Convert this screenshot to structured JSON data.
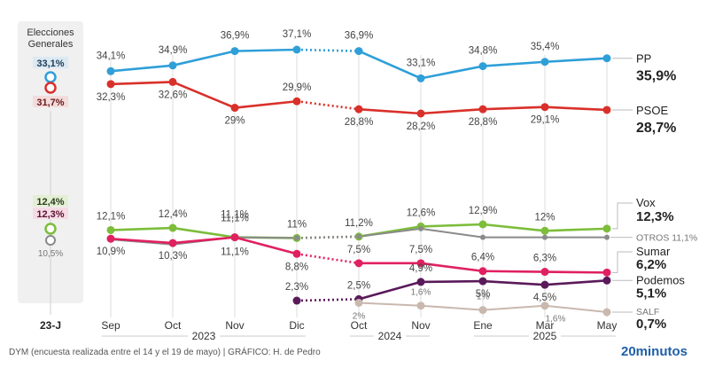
{
  "chart_data": {
    "type": "line",
    "title": "",
    "xlabel": "",
    "ylabel": "",
    "categories": [
      "Sep",
      "Oct",
      "Nov",
      "Dic",
      "Oct",
      "Nov",
      "Ene",
      "Mar",
      "May"
    ],
    "year_groups": [
      {
        "label": "2023",
        "from": 0,
        "to": 3
      },
      {
        "label": "2024",
        "from": 4,
        "to": 5
      },
      {
        "label": "2025",
        "from": 6,
        "to": 8
      }
    ],
    "election": {
      "title_line1": "Elecciones",
      "title_line2": "Generales",
      "axis_label": "23-J",
      "values": {
        "PP": {
          "value": 33.1,
          "label": "33,1%"
        },
        "PSOE": {
          "value": 31.7,
          "label": "31,7%"
        },
        "Vox": {
          "value": 12.4,
          "label": "12,4%"
        },
        "Sumar": {
          "value": 12.3,
          "label": "12,3%"
        },
        "Otros": {
          "value": 10.5,
          "label": "10,5%"
        }
      }
    },
    "series": [
      {
        "name": "PP",
        "color": "#2f9fd8",
        "values": [
          34.1,
          34.9,
          36.9,
          37.1,
          36.9,
          33.1,
          34.8,
          35.4,
          35.9
        ],
        "labels": [
          "34,1%",
          "34,9%",
          "36,9%",
          "37,1%",
          "36,9%",
          "33,1%",
          "34,8%",
          "35,4%",
          ""
        ],
        "dotted_gap": [
          3,
          4
        ],
        "legend_name": "PP",
        "legend_value": "35,9%"
      },
      {
        "name": "PSOE",
        "color": "#d9302a",
        "values": [
          32.3,
          32.6,
          29.0,
          29.9,
          28.8,
          28.2,
          28.8,
          29.1,
          28.7
        ],
        "labels": [
          "32,3%",
          "32,6%",
          "29%",
          "29,9%",
          "28,8%",
          "28,2%",
          "28,8%",
          "29,1%",
          ""
        ],
        "dotted_gap": [
          3,
          4
        ],
        "legend_name": "PSOE",
        "legend_value": "28,7%"
      },
      {
        "name": "Vox",
        "color": "#7cbd3a",
        "values": [
          12.1,
          12.4,
          11.1,
          11.0,
          11.2,
          12.6,
          12.9,
          12.0,
          12.3
        ],
        "labels": [
          "12,1%",
          "12,4%",
          "11,1%",
          "11%",
          "11,2%",
          "12,6%",
          "12,9%",
          "12%",
          ""
        ],
        "dotted_gap": [
          3,
          4
        ],
        "legend_name": "Vox",
        "legend_value": "12,3%"
      },
      {
        "name": "OTROS",
        "color": "#8a8a8a",
        "values": [
          10.8,
          10.1,
          11.1,
          11.0,
          11.2,
          12.3,
          11.1,
          11.1,
          11.1
        ],
        "labels": [
          "",
          "",
          "11,1%",
          "",
          "",
          "",
          "",
          "",
          ""
        ],
        "dotted_gap": [
          3,
          4
        ],
        "legend_name": "OTROS 11,1%",
        "legend_value": ""
      },
      {
        "name": "Sumar",
        "color": "#e0205f",
        "values": [
          10.9,
          10.3,
          11.1,
          8.8,
          7.5,
          7.5,
          6.4,
          6.3,
          6.2
        ],
        "labels": [
          "10,9%",
          "10,3%",
          "11,1%",
          "8,8%",
          "7,5%",
          "7,5%",
          "6,4%",
          "6,3%",
          ""
        ],
        "dotted_gap": [
          3,
          4
        ],
        "legend_name": "Sumar",
        "legend_value": "6,2%"
      },
      {
        "name": "Podemos",
        "color": "#5a1a5a",
        "values": [
          null,
          null,
          null,
          2.3,
          2.5,
          4.9,
          5.0,
          4.5,
          5.1
        ],
        "labels": [
          "",
          "",
          "",
          "2,3%",
          "2,5%",
          "4,9%",
          "5%",
          "4,5%",
          ""
        ],
        "dotted_gap": [
          3,
          4
        ],
        "legend_name": "Podemos",
        "legend_value": "5,1%"
      },
      {
        "name": "SALF",
        "color": "#c9b8ae",
        "values": [
          null,
          null,
          null,
          null,
          2.0,
          1.6,
          1.0,
          1.6,
          0.7
        ],
        "labels": [
          "",
          "",
          "",
          "",
          "2%",
          "1,6%",
          "1%",
          "1,6%",
          ""
        ],
        "dotted_gap": null,
        "legend_name": "SALF",
        "legend_value": "0,7%"
      }
    ]
  },
  "footer": {
    "source": "DYM (encuesta realizada entre el 14 y el 19 de mayo)  |  GRÁFICO: H. de Pedro",
    "brand": "20minutos"
  }
}
